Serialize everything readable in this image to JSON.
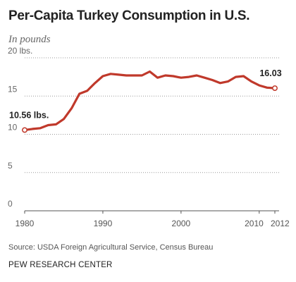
{
  "header": {
    "title": "Per-Capita Turkey Consumption in U.S.",
    "subtitle": "In pounds"
  },
  "footer": {
    "source": "Source: USDA Foreign Agricultural Service, Census Bureau",
    "brand": "PEW RESEARCH CENTER"
  },
  "chart_data": {
    "type": "line",
    "title": "Per-Capita Turkey Consumption in U.S.",
    "subtitle": "In pounds",
    "xlabel": "",
    "ylabel": "",
    "xlim": [
      1980,
      2012
    ],
    "ylim": [
      0,
      20
    ],
    "x_ticks": [
      1980,
      1990,
      2000,
      2010,
      2012
    ],
    "y_ticks": [
      {
        "value": 0,
        "label": "0"
      },
      {
        "value": 5,
        "label": "5"
      },
      {
        "value": 10,
        "label": "10"
      },
      {
        "value": 15,
        "label": "15"
      },
      {
        "value": 20,
        "label": "20 lbs."
      }
    ],
    "grid": "horizontal dotted",
    "line_color": "#c0392b",
    "series": [
      {
        "x": [
          1980,
          1981,
          1982,
          1983,
          1984,
          1985,
          1986,
          1987,
          1988,
          1989,
          1990,
          1991,
          1992,
          1993,
          1994,
          1995,
          1996,
          1997,
          1998,
          1999,
          2000,
          2001,
          2002,
          2003,
          2004,
          2005,
          2006,
          2007,
          2008,
          2009,
          2010,
          2011,
          2012
        ],
        "y": [
          10.56,
          10.7,
          10.8,
          11.2,
          11.3,
          12.0,
          13.4,
          15.3,
          15.7,
          16.7,
          17.6,
          17.9,
          17.8,
          17.7,
          17.7,
          17.7,
          18.2,
          17.4,
          17.7,
          17.6,
          17.4,
          17.5,
          17.7,
          17.4,
          17.1,
          16.7,
          16.9,
          17.5,
          17.6,
          16.9,
          16.4,
          16.1,
          16.03
        ]
      }
    ],
    "annotations": [
      {
        "x": 1980,
        "y": 10.56,
        "label": "10.56 lbs."
      },
      {
        "x": 2012,
        "y": 16.03,
        "label": "16.03"
      }
    ]
  }
}
